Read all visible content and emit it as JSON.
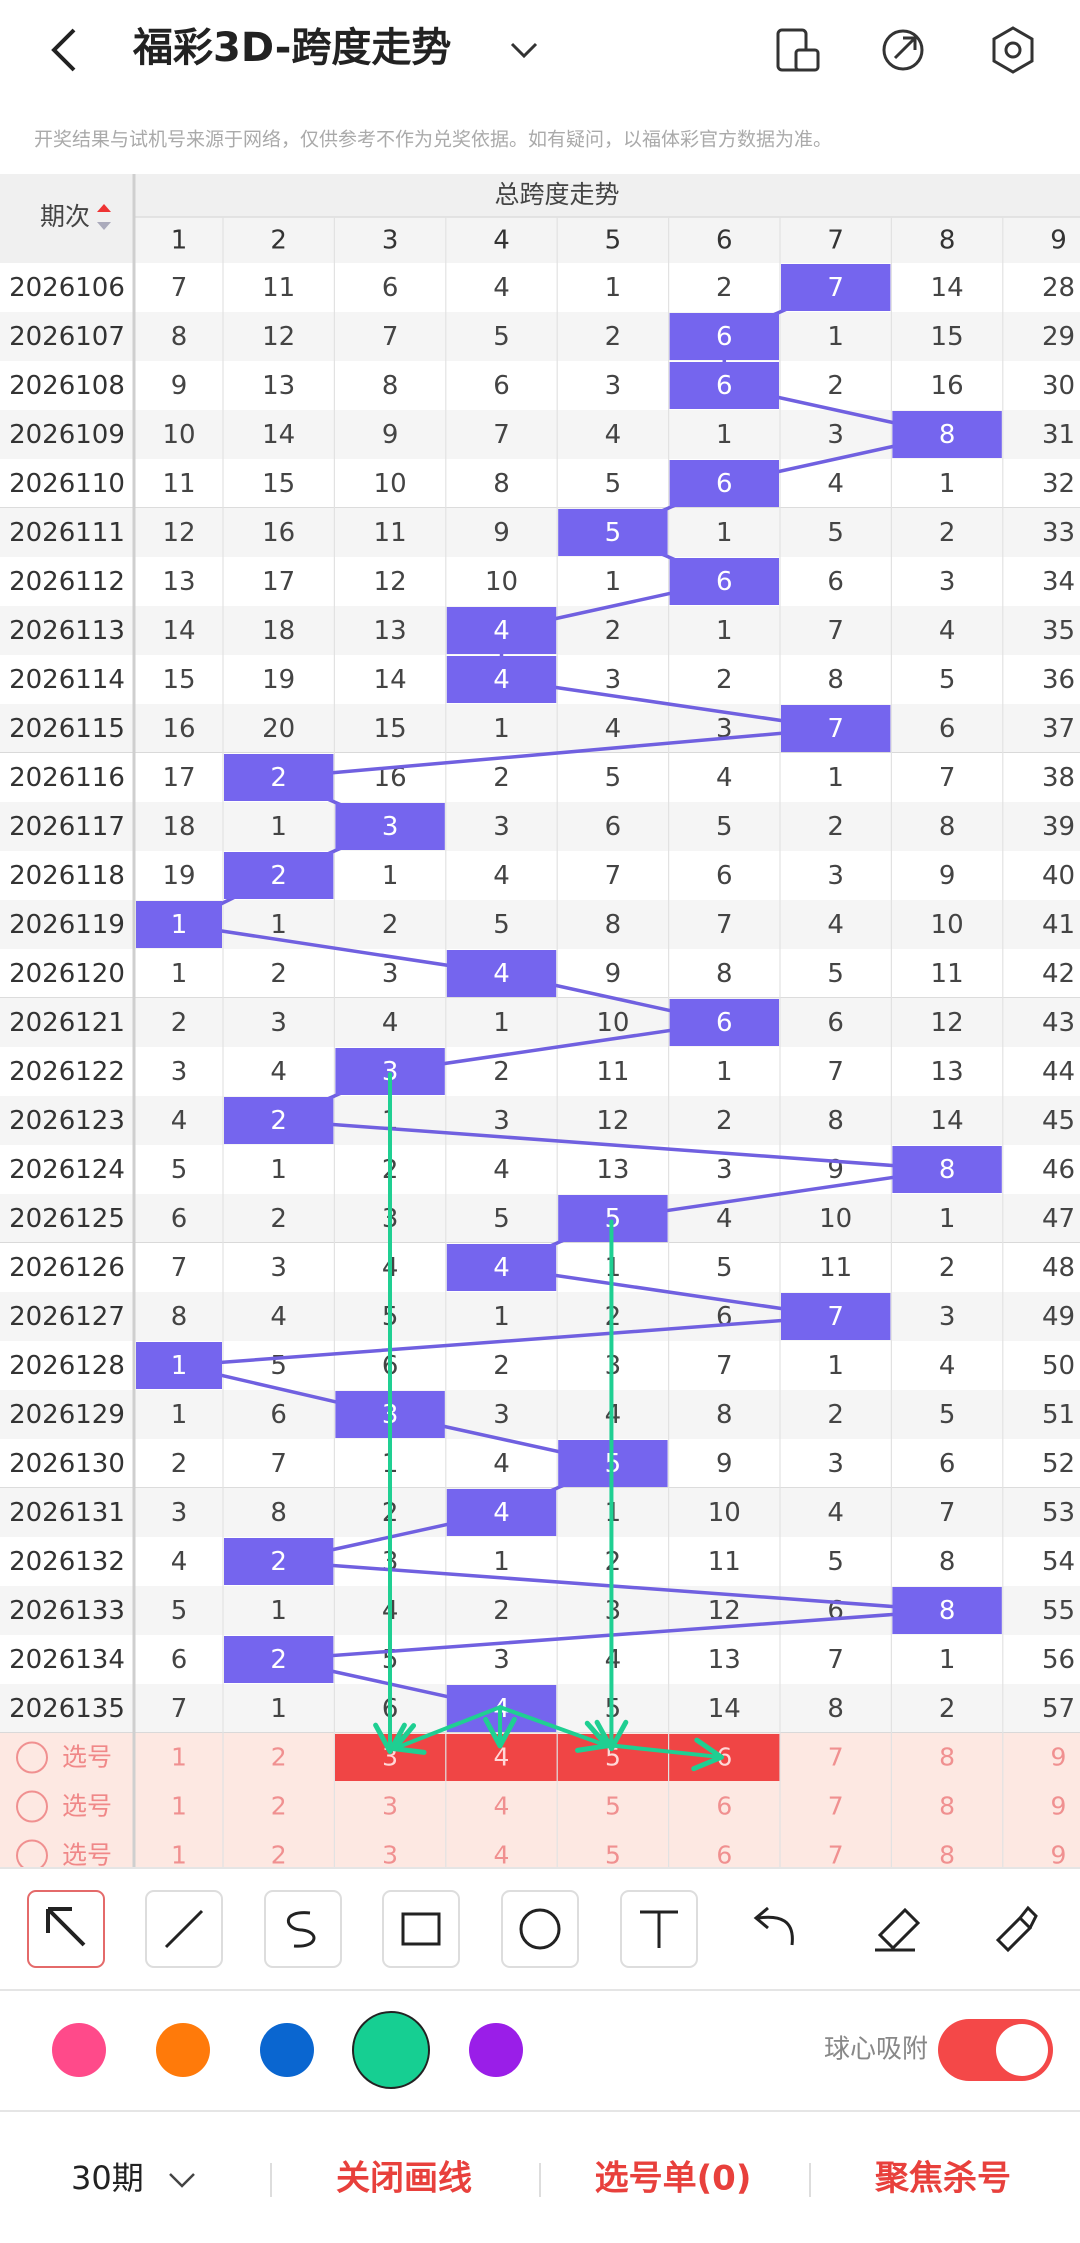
{
  "header": {
    "title": "福彩3D-跨度走势"
  },
  "notice": "开奖结果与试机号来源于网络，仅供参考不作为兑奖依据。如有疑问，以福体彩官方数据为准。",
  "table": {
    "issue_header": "期次",
    "group_header": "总跨度走势",
    "columns": [
      1,
      2,
      3,
      4,
      5,
      6,
      7,
      8,
      9
    ],
    "highlight_color": "#7565ee",
    "line_color": "#7060e0",
    "rows": [
      {
        "issue": "2026106",
        "span": 7,
        "values": [
          7,
          11,
          6,
          4,
          1,
          2,
          7,
          14,
          28
        ]
      },
      {
        "issue": "2026107",
        "span": 6,
        "values": [
          8,
          12,
          7,
          5,
          2,
          6,
          1,
          15,
          29
        ]
      },
      {
        "issue": "2026108",
        "span": 6,
        "values": [
          9,
          13,
          8,
          6,
          3,
          6,
          2,
          16,
          30
        ]
      },
      {
        "issue": "2026109",
        "span": 8,
        "values": [
          10,
          14,
          9,
          7,
          4,
          1,
          3,
          8,
          31
        ]
      },
      {
        "issue": "2026110",
        "span": 6,
        "values": [
          11,
          15,
          10,
          8,
          5,
          6,
          4,
          1,
          32
        ]
      },
      {
        "issue": "2026111",
        "span": 5,
        "values": [
          12,
          16,
          11,
          9,
          5,
          1,
          5,
          2,
          33
        ]
      },
      {
        "issue": "2026112",
        "span": 6,
        "values": [
          13,
          17,
          12,
          10,
          1,
          6,
          6,
          3,
          34
        ]
      },
      {
        "issue": "2026113",
        "span": 4,
        "values": [
          14,
          18,
          13,
          4,
          2,
          1,
          7,
          4,
          35
        ]
      },
      {
        "issue": "2026114",
        "span": 4,
        "values": [
          15,
          19,
          14,
          4,
          3,
          2,
          8,
          5,
          36
        ]
      },
      {
        "issue": "2026115",
        "span": 7,
        "values": [
          16,
          20,
          15,
          1,
          4,
          3,
          7,
          6,
          37
        ]
      },
      {
        "issue": "2026116",
        "span": 2,
        "values": [
          17,
          2,
          16,
          2,
          5,
          4,
          1,
          7,
          38
        ]
      },
      {
        "issue": "2026117",
        "span": 3,
        "values": [
          18,
          1,
          3,
          3,
          6,
          5,
          2,
          8,
          39
        ]
      },
      {
        "issue": "2026118",
        "span": 2,
        "values": [
          19,
          2,
          1,
          4,
          7,
          6,
          3,
          9,
          40
        ]
      },
      {
        "issue": "2026119",
        "span": 1,
        "values": [
          1,
          1,
          2,
          5,
          8,
          7,
          4,
          10,
          41
        ]
      },
      {
        "issue": "2026120",
        "span": 4,
        "values": [
          1,
          2,
          3,
          4,
          9,
          8,
          5,
          11,
          42
        ]
      },
      {
        "issue": "2026121",
        "span": 6,
        "values": [
          2,
          3,
          4,
          1,
          10,
          6,
          6,
          12,
          43
        ]
      },
      {
        "issue": "2026122",
        "span": 3,
        "values": [
          3,
          4,
          3,
          2,
          11,
          1,
          7,
          13,
          44
        ]
      },
      {
        "issue": "2026123",
        "span": 2,
        "values": [
          4,
          2,
          1,
          3,
          12,
          2,
          8,
          14,
          45
        ]
      },
      {
        "issue": "2026124",
        "span": 8,
        "values": [
          5,
          1,
          2,
          4,
          13,
          3,
          9,
          8,
          46
        ]
      },
      {
        "issue": "2026125",
        "span": 5,
        "values": [
          6,
          2,
          3,
          5,
          5,
          4,
          10,
          1,
          47
        ]
      },
      {
        "issue": "2026126",
        "span": 4,
        "values": [
          7,
          3,
          4,
          4,
          1,
          5,
          11,
          2,
          48
        ]
      },
      {
        "issue": "2026127",
        "span": 7,
        "values": [
          8,
          4,
          5,
          1,
          2,
          6,
          7,
          3,
          49
        ]
      },
      {
        "issue": "2026128",
        "span": 1,
        "values": [
          1,
          5,
          6,
          2,
          3,
          7,
          1,
          4,
          50
        ]
      },
      {
        "issue": "2026129",
        "span": 3,
        "values": [
          1,
          6,
          3,
          3,
          4,
          8,
          2,
          5,
          51
        ]
      },
      {
        "issue": "2026130",
        "span": 5,
        "values": [
          2,
          7,
          1,
          4,
          5,
          9,
          3,
          6,
          52
        ]
      },
      {
        "issue": "2026131",
        "span": 4,
        "values": [
          3,
          8,
          2,
          4,
          1,
          10,
          4,
          7,
          53
        ]
      },
      {
        "issue": "2026132",
        "span": 2,
        "values": [
          4,
          2,
          3,
          1,
          2,
          11,
          5,
          8,
          54
        ]
      },
      {
        "issue": "2026133",
        "span": 8,
        "values": [
          5,
          1,
          4,
          2,
          3,
          12,
          6,
          8,
          55
        ]
      },
      {
        "issue": "2026134",
        "span": 2,
        "values": [
          6,
          2,
          5,
          3,
          4,
          13,
          7,
          1,
          56
        ]
      },
      {
        "issue": "2026135",
        "span": 4,
        "values": [
          7,
          1,
          6,
          4,
          5,
          14,
          8,
          2,
          57
        ]
      }
    ],
    "select_rows": [
      {
        "label": "选号",
        "values": [
          1,
          2,
          3,
          4,
          5,
          6,
          7,
          8,
          9
        ],
        "selected": [
          3,
          4,
          5,
          6
        ]
      },
      {
        "label": "选号",
        "values": [
          1,
          2,
          3,
          4,
          5,
          6,
          7,
          8,
          9
        ],
        "selected": []
      },
      {
        "label": "选号",
        "values": [
          1,
          2,
          3,
          4,
          5,
          6,
          7,
          8,
          9
        ],
        "selected": []
      }
    ]
  },
  "pen_colors": [
    "#ff4a8a",
    "#ff7a0a",
    "#0a66d0",
    "#16cf92",
    "#9a1ee8"
  ],
  "active_color": 3,
  "toggle": {
    "label": "球心吸附",
    "on": true
  },
  "footer": {
    "period": "30期",
    "actions": [
      "关闭画线",
      "选号单(0)",
      "聚焦杀号"
    ]
  }
}
